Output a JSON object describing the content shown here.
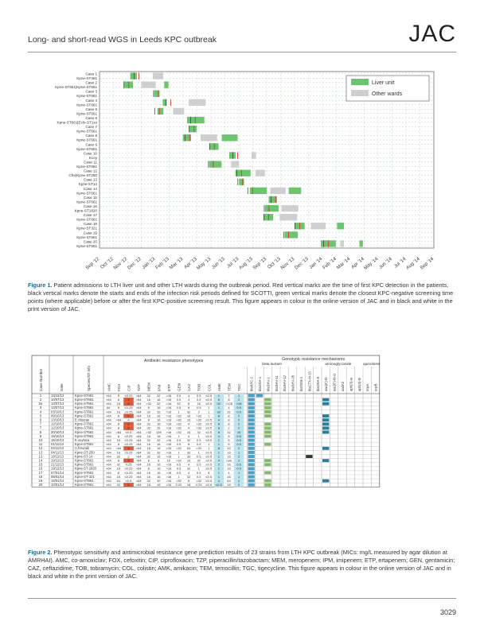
{
  "header": {
    "running_title": "Long- and short-read WGS in Leeds KPC outbreak",
    "journal": "JAC"
  },
  "figure1": {
    "row_labels": [
      "Case 1",
      "Kpne-ST491",
      "Case 2",
      "Kpne-ST661|Kpne-ST661",
      "Case 3",
      "Kpne-ST661",
      "Case 4",
      "Kpne-ST661",
      "Case 5",
      "Kpne-ST661",
      "Case 6",
      "Kpne-ST661|Eclo-ST1xx",
      "Case 7",
      "Kpne-ST661",
      "Case 8",
      "Kpne-ST661",
      "Case 9",
      "Kpne-ST661",
      "Case 10",
      "Kcoy",
      "Case 11",
      "Kpne-ST661",
      "Case 12",
      "Cfre|Kpne-ST250",
      "Case 13",
      "Kpne-ST14",
      "Case 14",
      "Kpne-ST661",
      "Case 15",
      "Kpne-ST661",
      "Case 16",
      "Kpne-ST1820",
      "Case 17",
      "Kpne-ST661",
      "Case 18",
      "Kpne-ST321",
      "Case 19",
      "Kpne-ST661",
      "Case 20",
      "Kpne-ST661"
    ],
    "x_ticks": [
      "Sep '12",
      "Oct '12",
      "Nov '12",
      "Dec '12",
      "Jan '13",
      "Feb '13",
      "Mar '13",
      "Apr '13",
      "May '13",
      "Jun '13",
      "Jul '13",
      "Aug '13",
      "Sep '13",
      "Oct '13",
      "Nov '13",
      "Dec '13",
      "Jan '14",
      "Feb '14",
      "Mar '14",
      "Apr '14",
      "May '14",
      "Jun '14",
      "Jul '14",
      "Aug '14",
      "Sep '14"
    ],
    "legend": [
      {
        "label": "Liver unit",
        "color": "#6cc46f"
      },
      {
        "label": "Other wards",
        "color": "#cfcfcf"
      }
    ],
    "colors": {
      "liver": "#6cc46f",
      "other": "#cfcfcf",
      "kpc": "#d83a2e",
      "risk": "#222222",
      "screen": "#2f8f3a"
    }
  },
  "caption1": {
    "label": "Figure 1.",
    "text": "Patient admissions to LTH liver unit and other LTH wards during the outbreak period. Red vertical marks are the time of first KPC detection in the patients, black vertical marks denote the starts and ends of the infection risk periods defined for SCOTTI, green vertical marks denote the closest KPC-negative screening time points (where applicable) before or after the first KPC-positive screening result. This figure appears in colour in the online version of JAC and in black and white in the print version of JAC."
  },
  "figure2": {
    "group_headers": {
      "phenotypes": "Antibiotic resistance phenotypes",
      "genotypic": "Genotypic resistance mechanisms",
      "beta": "beta lactam",
      "amino": "aminoglycoside",
      "quin": "quinolone"
    },
    "id_headers": [
      "Case Number",
      "Date",
      "Species/ST info"
    ],
    "pheno_cols": [
      "AMC",
      "FOX",
      "CIP",
      "TZP",
      "MEM",
      "IPM",
      "ETP",
      "GEN",
      "CAZ",
      "TOB",
      "COL",
      "AMK",
      "TEM",
      "TGC"
    ],
    "gene_cols": [
      "blaKPC-2",
      "blaOXA-1",
      "blaSHV-1",
      "blaSHV-11",
      "blaSHV-12",
      "blaSHV-28",
      "blaTEM-1",
      "blaCTX-M-15",
      "blaOXA-9",
      "aac(6')-Ib",
      "aac(6')-Ib-cr",
      "aadA2",
      "aph(3)-Ia",
      "aph(3)-Ib",
      "oqxA",
      "oqxB"
    ],
    "rows": [
      {
        "case": "1",
        "date": "13/12/12",
        "sp": "Kpne-ST491",
        "v": [
          ">64",
          "8",
          "≤0.25",
          ">64",
          "32",
          "32",
          ">16",
          "0.5",
          "4",
          "0.5",
          "≤0.5",
          "1",
          "2",
          "1"
        ],
        "g": [
          "b",
          "b",
          "",
          "",
          "",
          "",
          "",
          "",
          "",
          "",
          "",
          "",
          "",
          "",
          "",
          ""
        ]
      },
      {
        "case": "2",
        "date": "10/07/13",
        "sp": "Kpne-ST661",
        "v": [
          ">64",
          "8",
          "8",
          ">64",
          "16",
          "16",
          ">16",
          "0.5",
          "4",
          "0.5",
          "≤0.5",
          "8",
          "8",
          "2"
        ],
        "g": [
          "b",
          "",
          "g",
          "",
          "",
          "",
          "",
          "",
          "",
          "t",
          "",
          "",
          "",
          "",
          "",
          ""
        ]
      },
      {
        "case": "2a",
        "date": "10/07/13",
        "sp": "Kpne-ST661",
        "v": [
          ">64",
          "16",
          "8",
          ">64",
          ">32",
          "32",
          ">16",
          "32",
          "8",
          "16",
          "≤0.5",
          "32",
          ">128",
          ">16"
        ],
        "g": [
          "b",
          "",
          "g",
          "",
          "",
          "",
          "",
          "",
          "",
          "t",
          "",
          "",
          "",
          "",
          "",
          ""
        ]
      },
      {
        "case": "3",
        "date": "13/07/13",
        "sp": "Kpne-ST661",
        ">": "",
        "v": [
          "64",
          "8",
          "≤0.25",
          ">64",
          "8",
          "16",
          ">16",
          "0.5",
          "8",
          "0.5",
          "1",
          "1",
          "4",
          "0.5"
        ],
        "g": [
          "b",
          "",
          "g",
          "",
          "",
          "",
          "",
          "",
          "",
          "",
          "",
          "",
          "",
          "",
          "",
          ""
        ]
      },
      {
        "case": "4",
        "date": "03/10/13",
        "sp": "Kpne-ST661",
        "v": [
          ">64",
          "16",
          "≤0.25",
          ">64",
          "32",
          "32",
          ">16",
          "1",
          "32",
          "2",
          "1",
          "32",
          "32",
          "0.5"
        ],
        "g": [
          "b",
          "",
          "g",
          "",
          "",
          "",
          "",
          "",
          "",
          "",
          "",
          "",
          "",
          "",
          "",
          ""
        ]
      },
      {
        "case": "5",
        "date": "09/10/13",
        "sp": "Kpne-ST661",
        "v": [
          ">64",
          "8",
          "8",
          ">64",
          "16",
          "16",
          ">16",
          ">32",
          "16",
          ">32",
          "1",
          "8",
          "8",
          "2"
        ],
        "g": [
          "b",
          "",
          "g",
          "",
          "",
          "",
          "",
          "",
          "",
          "t",
          "",
          "",
          "",
          "",
          "",
          ""
        ]
      },
      {
        "case": "6",
        "date": "13/10/13",
        "sp": "E.cloacae",
        "v": [
          ">64",
          ">64",
          "4",
          ">64",
          "8",
          "16",
          ">16",
          ">32",
          "16",
          ">32",
          "≤0.5",
          "4",
          "8",
          "2"
        ],
        "g": [
          "b",
          "",
          "",
          "",
          "",
          "",
          "",
          "",
          "",
          "t",
          "",
          "",
          "",
          "",
          "",
          ""
        ]
      },
      {
        "case": "7",
        "date": "12/10/13",
        "sp": "Kpne-ST661",
        "v": [
          ">64",
          "8",
          "8",
          ">64",
          "32",
          "16",
          ">16",
          ">32",
          "4",
          ">32",
          "≤0.5",
          "8",
          "8",
          "2"
        ],
        "g": [
          "b",
          "",
          "g",
          "",
          "",
          "",
          "",
          "",
          "",
          "t",
          "",
          "",
          "",
          "",
          "",
          ""
        ]
      },
      {
        "case": "7",
        "date": "12/10/13",
        "sp": "Kpne-ST661",
        "v": [
          ">64",
          "8",
          "8",
          ">64",
          "32",
          "16",
          ">16",
          ">32",
          "4",
          ">32",
          "≤0.5",
          "8",
          "2",
          "2"
        ],
        "g": [
          "b",
          "",
          "g",
          "",
          "",
          "",
          "",
          "",
          "",
          "t",
          "",
          "",
          "",
          "",
          "",
          ""
        ]
      },
      {
        "case": "8",
        "date": "20/10/13",
        "sp": "Kpne-ST661",
        "v": [
          ">64",
          ">64",
          "≤0.5",
          ">64",
          ">32",
          "128",
          ">16",
          ">32",
          "16",
          "32",
          "≤0.5",
          "8",
          "32",
          "16"
        ],
        "g": [
          "b",
          "",
          "g",
          "",
          "",
          "",
          "",
          "",
          "",
          "t",
          "",
          "",
          "",
          "",
          "",
          ""
        ]
      },
      {
        "case": "9",
        "date": "15/10/13",
        "sp": "Kpne-ST661",
        "v": [
          ">64",
          "8",
          "≤0.25",
          ">64",
          "16",
          "16",
          ">16",
          "1",
          "4",
          "1",
          "≤0.5",
          "4",
          "8",
          "0.5"
        ],
        "g": [
          "b",
          "",
          "g",
          "",
          "",
          "",
          "",
          "",
          "",
          "",
          "",
          "",
          "",
          "",
          "",
          ""
        ]
      },
      {
        "case": "10",
        "date": "15/10/13",
        "sp": "K.oxytoca",
        "v": [
          ">64",
          "16",
          "≤0.25",
          ">64",
          "32",
          "32",
          ">16",
          "0.5",
          "32",
          "0.5",
          "≤0.5",
          "1",
          "8",
          "0.5"
        ],
        "g": [
          "b",
          "",
          "",
          "",
          "",
          "",
          "",
          "",
          "",
          "",
          "",
          "",
          "",
          "",
          "",
          ""
        ]
      },
      {
        "case": "11",
        "date": "01/11/13",
        "sp": "Kpne-ST661",
        "v": [
          ">64",
          "8",
          "≤0.25",
          ">64",
          "16",
          "16",
          ">16",
          "0.5",
          "8",
          "0.5",
          "1",
          "1",
          "8",
          "0.5"
        ],
        "g": [
          "b",
          "",
          "g",
          "",
          "",
          "",
          "",
          "",
          "",
          "",
          "",
          "",
          "",
          "",
          "",
          ""
        ]
      },
      {
        "case": "12",
        "date": "04/11/13",
        "sp": "C.freundii",
        "v": [
          ">64",
          ">64",
          "8",
          ">64",
          "16",
          "16",
          ">16",
          ">32",
          "64",
          ">32",
          "1",
          "8",
          "32",
          "2"
        ],
        "g": [
          "b",
          "",
          "",
          "",
          "",
          "",
          "",
          "",
          "",
          "t",
          "",
          "",
          "",
          "",
          "",
          ""
        ]
      },
      {
        "case": "13",
        "date": "04/11/13",
        "sp": "Kpne-ST-250",
        "v": [
          ">64",
          "16",
          "≤0.25",
          ">64",
          "32",
          "32",
          ">16",
          "1",
          "32",
          "1",
          "≤0.5",
          "1",
          "16",
          "1"
        ],
        "g": [
          "b",
          "",
          "",
          "",
          "",
          "",
          "",
          "",
          "",
          "",
          "",
          "",
          "",
          "",
          "",
          ""
        ]
      },
      {
        "case": "13",
        "date": "18/11/13",
        "sp": "Kpne-ST-14",
        "v": [
          ">64",
          "32",
          "2",
          ">64",
          "32",
          "16",
          ">16",
          "1",
          "32",
          "0.5",
          "≤0.5",
          "1",
          "16",
          "2"
        ],
        "g": [
          "b",
          "",
          "",
          "",
          "",
          "",
          "",
          "d",
          "",
          "",
          "",
          "",
          "",
          "",
          "",
          ""
        ]
      },
      {
        "case": "14",
        "date": "19/11/13",
        "sp": "Kpne-ST661",
        ">": "",
        "v": [
          ">64",
          "8",
          "8",
          ">64",
          "8",
          "8",
          "16",
          ">32",
          "16",
          "32",
          "≤0.5",
          "4",
          "null",
          "1"
        ],
        "g": [
          "b",
          "",
          "g",
          "",
          "",
          "",
          "",
          "",
          "",
          "t",
          "",
          "",
          "",
          "",
          "",
          ""
        ]
      },
      {
        "case": "15",
        "date": "21/11/13",
        "sp": "Kpne-ST661",
        "v": [
          ">64",
          "32",
          "0.25",
          ">64",
          "16",
          "16",
          ">16",
          "0.5",
          "4",
          "0.5",
          "≤0.5",
          "2",
          "16",
          "0.5"
        ],
        "g": [
          "b",
          "",
          "g",
          "",
          "",
          "",
          "",
          "",
          "",
          "",
          "",
          "",
          "",
          "",
          "",
          ""
        ]
      },
      {
        "case": "16",
        "date": "19/12/13",
        "sp": "Kpne-ST-1820",
        "v": [
          ">64",
          "16",
          "≤0.25",
          ">64",
          "8",
          "16",
          ">16",
          "0.5",
          "32",
          "1",
          "≤0.5",
          "1",
          "16",
          "0.5"
        ],
        "g": [
          "b",
          "",
          "",
          "",
          "",
          "",
          "",
          "",
          "",
          "",
          "",
          "",
          "",
          "",
          "",
          ""
        ]
      },
      {
        "case": "17",
        "date": "07/01/14",
        "sp": "Kpne-ST661",
        "v": [
          ">64",
          "8",
          "≤0.25",
          ">64",
          "16",
          "16",
          ">16",
          "0.5",
          "4",
          "0.5",
          "8",
          "1",
          "4",
          "1"
        ],
        "g": [
          "b",
          "",
          "g",
          "",
          "",
          "",
          "",
          "",
          "",
          "",
          "",
          "",
          "",
          "",
          "",
          ""
        ]
      },
      {
        "case": "18",
        "date": "08/01/14",
        "sp": "Kpne-ST-321",
        "v": [
          ">64",
          "16",
          "≤0.25",
          ">64",
          "16",
          "16",
          ">16",
          "1",
          "32",
          "0.5",
          "≤0.5",
          "1",
          "16",
          "1"
        ],
        "g": [
          "b",
          "",
          "",
          "",
          "",
          "",
          "",
          "",
          "",
          "",
          "",
          "",
          "",
          "",
          "",
          ""
        ]
      },
      {
        "case": "19",
        "date": "16/01/14",
        "sp": "Kpne-ST661",
        "v": [
          ">64",
          "64",
          "≤0.5",
          ">64",
          "32",
          "32",
          ">16",
          ">32",
          "8",
          ">32",
          "≤0.5",
          "4",
          "64",
          "2"
        ],
        "g": [
          "b",
          "",
          "g",
          "",
          "",
          "",
          "",
          "",
          "",
          "t",
          "",
          "",
          "",
          "",
          "",
          ""
        ]
      },
      {
        "case": "20",
        "date": "10/01/14",
        "sp": "Kpne-ST661",
        "v": [
          ">64",
          "32",
          "8",
          ">64",
          "16",
          "16",
          ">16",
          "0.25",
          "16",
          "0.25",
          "≤0.5",
          "≤0.5",
          "16",
          "2"
        ],
        "g": [
          "b",
          "",
          "g",
          "",
          "",
          "",
          "",
          "",
          "",
          "",
          "",
          "",
          "",
          "",
          "",
          ""
        ]
      }
    ],
    "gene_colors": {
      "b": "#4a9fc7",
      "g": "#86b86a",
      "t": "#2a7f9e",
      "d": "#2b3a2a"
    },
    "accent_red": "#e05a3a",
    "pheno_fill": "#bfe4ee"
  },
  "caption2": {
    "label": "Figure 2.",
    "text": "Phenotypic sensitivity and antimicrobial resistance gene prediction results of 23 strains from LTH KPC outbreak (MICs: mg/L measured by agar dilution at AMRHAI). AMC, co-amoxiclav; FOX, cefoxitin; CIP, ciprofloxacin; TZP, piperacillin/tazobactam; MEM, meropenem; IPM, imipenem; ETP, ertapenem; GEN, gentamicin; CAZ, ceftazidime; TOB, tobramycin; COL, colistin; AMK, amikacin; TEM, temocillin; TGC, tigecycline. This figure appears in colour in the online version of JAC and in black and white in the print version of JAC."
  },
  "footer": {
    "page_number": "3029"
  }
}
